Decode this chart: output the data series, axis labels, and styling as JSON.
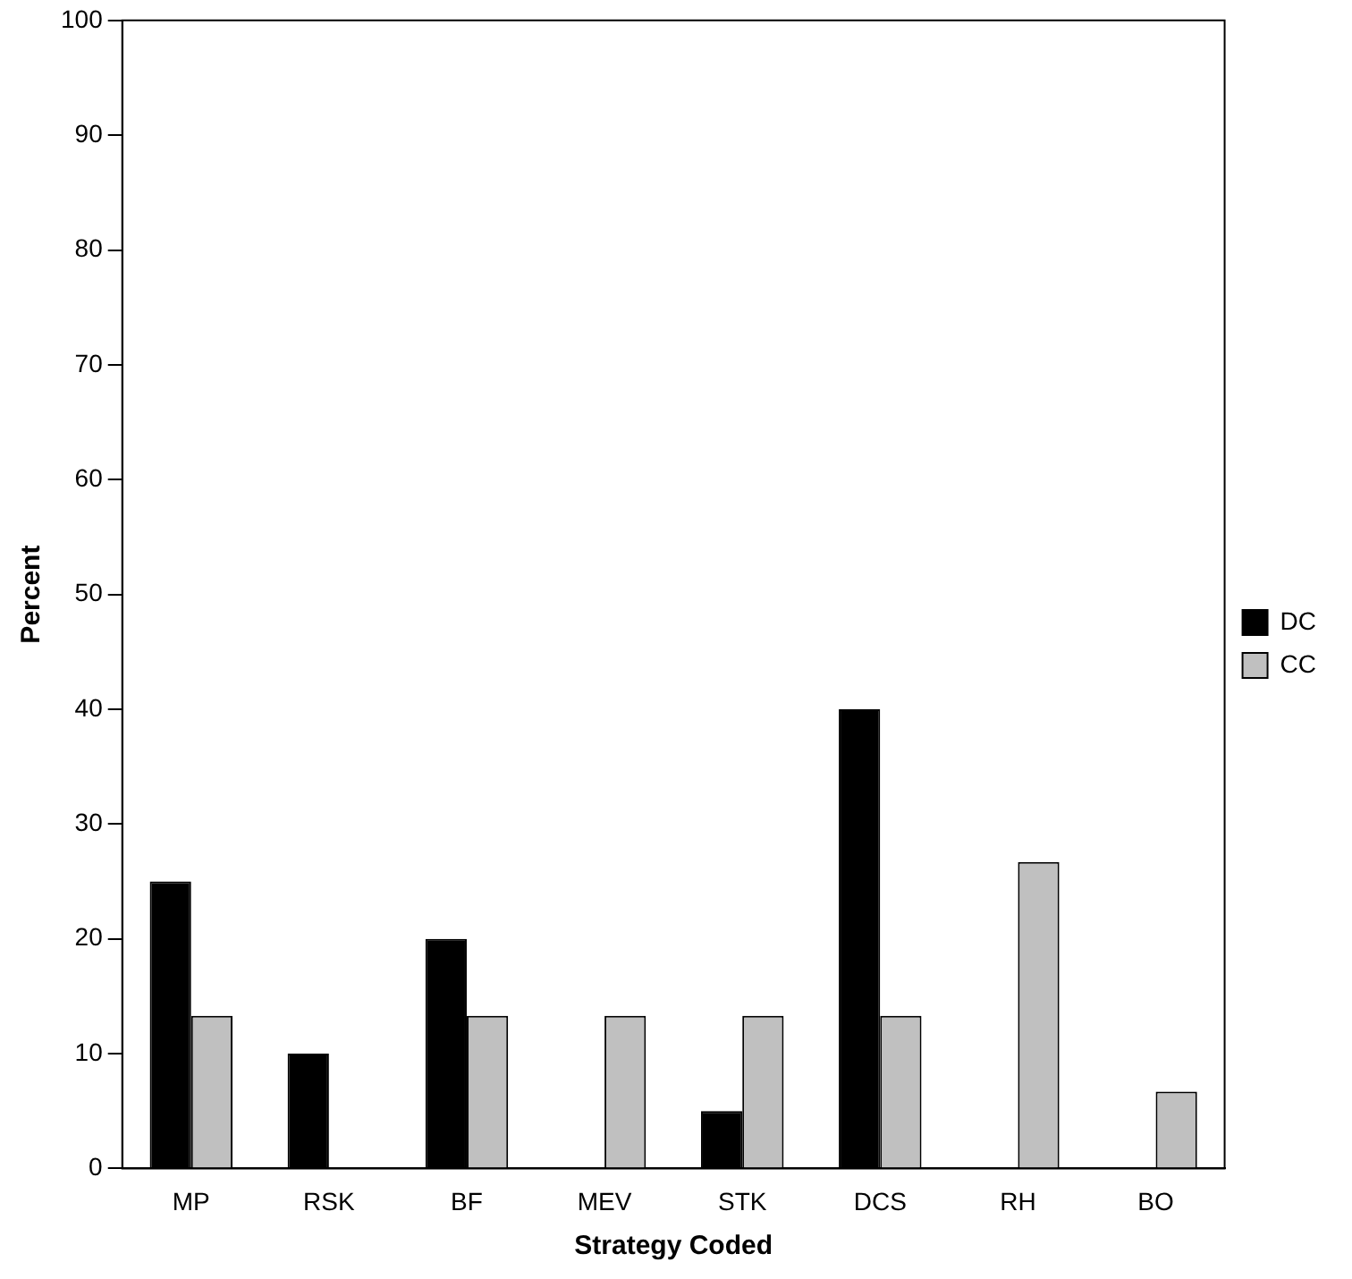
{
  "chart_data": {
    "type": "bar",
    "xlabel": "Strategy Coded",
    "ylabel": "Percent",
    "categories": [
      "MP",
      "RSK",
      "BF",
      "MEV",
      "STK",
      "DCS",
      "RH",
      "BO"
    ],
    "series": [
      {
        "name": "DC",
        "color": "#000000",
        "values": [
          25,
          10,
          20,
          0,
          5,
          40,
          0,
          0
        ]
      },
      {
        "name": "CC",
        "color": "#c0c0c0",
        "values": [
          13.3,
          0,
          13.3,
          13.3,
          13.3,
          13.3,
          26.7,
          6.7
        ]
      }
    ],
    "ylim": [
      0,
      100
    ],
    "yticks": [
      0,
      10,
      20,
      30,
      40,
      50,
      60,
      70,
      80,
      90,
      100
    ],
    "grid": false,
    "legend": "right"
  }
}
